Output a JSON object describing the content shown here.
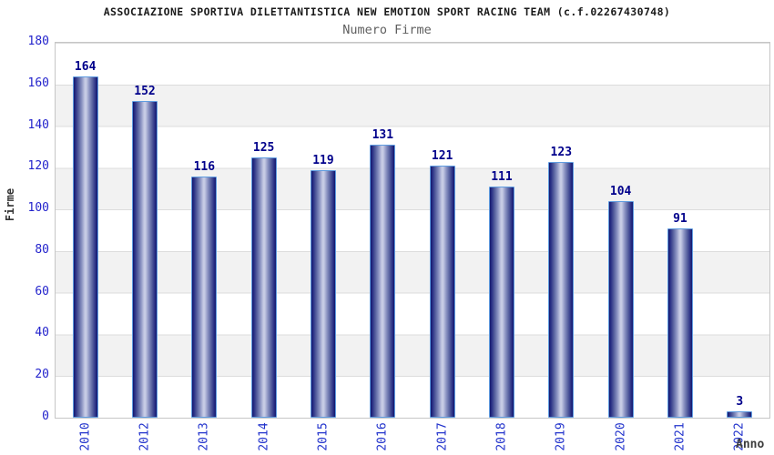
{
  "chart_data": {
    "type": "bar",
    "title": "ASSOCIAZIONE SPORTIVA DILETTANTISTICA NEW EMOTION SPORT RACING TEAM (c.f.02267430748)",
    "subtitle": "Numero Firme",
    "xlabel": "Anno",
    "ylabel": "Firme",
    "categories": [
      "2010",
      "2012",
      "2013",
      "2014",
      "2015",
      "2016",
      "2017",
      "2018",
      "2019",
      "2020",
      "2021",
      "2022"
    ],
    "values": [
      164,
      152,
      116,
      125,
      119,
      131,
      121,
      111,
      123,
      104,
      91,
      3
    ],
    "ylim": [
      0,
      180
    ],
    "ytick_step": 20,
    "yticks": [
      0,
      20,
      40,
      60,
      80,
      100,
      120,
      140,
      160,
      180
    ],
    "grid": "horizontal alternating bands every 20 units",
    "legend": false,
    "bar_labels_shown": true,
    "x_tick_rotation_degrees": 90,
    "colors": {
      "bar_edge_dark": "#12176e",
      "bar_center_light": "#c6cbe4",
      "bar_border": "#5f9ce0",
      "value_label": "#00008b",
      "axis_tick_label": "#2323cc",
      "band_fill": "#f2f2f2",
      "plot_border": "#c6c6c6",
      "title_text": "#1a1a1a",
      "subtitle_text": "#5f5f5f",
      "axis_title_text": "#333333",
      "background": "#ffffff"
    }
  }
}
